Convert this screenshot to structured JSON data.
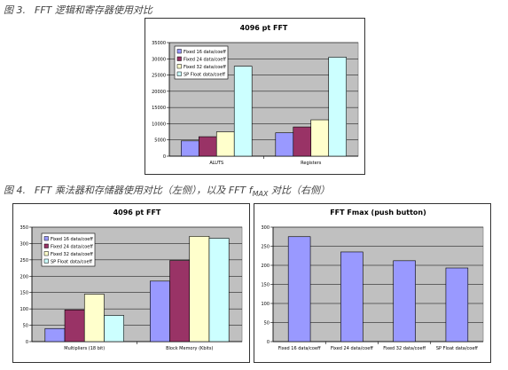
{
  "captions": {
    "fig3": {
      "num": "图 3.",
      "text": "FFT 逻辑和寄存器使用对比"
    },
    "fig4": {
      "num": "图 4.",
      "text_a": "FFT 乘法器和存储器使用对比（左侧），以及 FFT f",
      "sub": "MAX",
      "text_b": " 对比（右侧）"
    }
  },
  "colors": {
    "plot_bg": "#c0c0c0",
    "fixed16": "#9999ff",
    "fixed24": "#993366",
    "fixed32": "#ffffcc",
    "sp_float": "#ccffff"
  },
  "chart_data": [
    {
      "id": "fig3",
      "type": "bar",
      "title": "4096 pt FFT",
      "categories": [
        "ALUTS",
        "Registers"
      ],
      "series": [
        {
          "name": "Fixed 16 data/coeff",
          "values": [
            4700,
            7200
          ]
        },
        {
          "name": "Fixed 24 data/coeff",
          "values": [
            6000,
            9000
          ]
        },
        {
          "name": "Fixed 32 data/coeff",
          "values": [
            7500,
            11200
          ]
        },
        {
          "name": "SP Float data/coeff",
          "values": [
            27700,
            30500
          ]
        }
      ],
      "ylim": [
        0,
        35000
      ],
      "yticks": [
        0,
        5000,
        10000,
        15000,
        20000,
        25000,
        30000,
        35000
      ],
      "grid": true,
      "legend": "top-left"
    },
    {
      "id": "fig4-left",
      "type": "bar",
      "title": "4096 pt FFT",
      "categories": [
        "Multipliers (18 bit)",
        "Block Memory (Kbits)"
      ],
      "series": [
        {
          "name": "Fixed 16 data/coeff",
          "values": [
            40,
            185
          ]
        },
        {
          "name": "Fixed 24 data/coeff",
          "values": [
            97,
            248
          ]
        },
        {
          "name": "Fixed 32 data/coeff",
          "values": [
            145,
            322
          ]
        },
        {
          "name": "SP Float data/coeff",
          "values": [
            80,
            316
          ]
        }
      ],
      "ylim": [
        0,
        350
      ],
      "yticks": [
        0,
        50,
        100,
        150,
        200,
        250,
        300,
        350
      ],
      "grid": true,
      "legend": "top-left"
    },
    {
      "id": "fig4-right",
      "type": "bar",
      "title": "FFT Fmax (push button)",
      "categories": [
        "Fixed 16 data/coeff",
        "Fixed 24 data/coeff",
        "Fixed 32 data/coeff",
        "SP Float data/coeff"
      ],
      "series": [
        {
          "values": [
            275,
            235,
            212,
            193
          ]
        }
      ],
      "ylim": [
        0,
        300
      ],
      "yticks": [
        0,
        50,
        100,
        150,
        200,
        250,
        300
      ],
      "grid": true
    }
  ]
}
